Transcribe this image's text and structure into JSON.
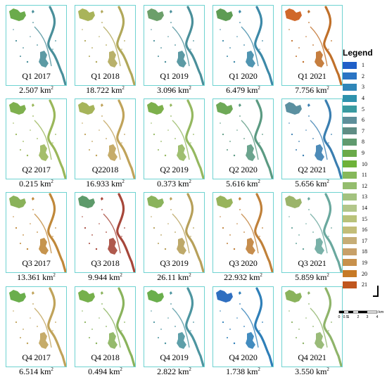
{
  "panels": [
    {
      "label": "Q1 2017",
      "area": "2.507",
      "unit": "km",
      "unit_sup": "2",
      "tint": "#4a8f9a",
      "nw": "#6bab4c"
    },
    {
      "label": "Q1 2018",
      "area": "18.722",
      "unit": "km",
      "unit_sup": "2",
      "tint": "#b1a85a",
      "nw": "#a9b45a"
    },
    {
      "label": "Q1 2019",
      "area": "3.096",
      "unit": "km",
      "unit_sup": "2",
      "tint": "#4a8f9a",
      "nw": "#6c9f6a"
    },
    {
      "label": "Q1 2020",
      "area": "6.479",
      "unit": "km",
      "unit_sup": "2",
      "tint": "#3d89a8",
      "nw": "#5e9c54"
    },
    {
      "label": "Q1 2021",
      "area": "7.756",
      "unit": "km",
      "unit_sup": "2",
      "tint": "#c0702a",
      "nw": "#d0682a"
    },
    {
      "label": "Q2 2017",
      "area": "0.215",
      "unit": "km",
      "unit_sup": "2",
      "tint": "#9ab75a",
      "nw": "#7fb04e"
    },
    {
      "label": "Q22018",
      "area": "16.933",
      "unit": "km",
      "unit_sup": "2",
      "tint": "#c0a35a",
      "nw": "#a6b45a"
    },
    {
      "label": "Q2 2019",
      "area": "0.373",
      "unit": "km",
      "unit_sup": "2",
      "tint": "#95b860",
      "nw": "#7db04c"
    },
    {
      "label": "Q2 2020",
      "area": "5.616",
      "unit": "km",
      "unit_sup": "2",
      "tint": "#5b9a82",
      "nw": "#6ea957"
    },
    {
      "label": "Q2 2021",
      "area": "5.656",
      "unit": "km",
      "unit_sup": "2",
      "tint": "#3a7eb0",
      "nw": "#5b90a0"
    },
    {
      "label": "Q3 2017",
      "area": "13.361",
      "unit": "km",
      "unit_sup": "2",
      "tint": "#c0883a",
      "nw": "#8ab25a"
    },
    {
      "label": "Q3 2018",
      "area": "9.944",
      "unit": "km",
      "unit_sup": "2",
      "tint": "#a6473a",
      "nw": "#5d9a6a"
    },
    {
      "label": "Q3 2019",
      "area": "26.11",
      "unit": "km",
      "unit_sup": "2",
      "tint": "#b7a05a",
      "nw": "#8ab35c"
    },
    {
      "label": "Q3 2020",
      "area": "22.932",
      "unit": "km",
      "unit_sup": "2",
      "tint": "#c0813a",
      "nw": "#98b45c"
    },
    {
      "label": "Q3 2021",
      "area": "5.859",
      "unit": "km",
      "unit_sup": "2",
      "tint": "#6aa89e",
      "nw": "#9bb46a"
    },
    {
      "label": "Q4 2017",
      "area": "6.514",
      "unit": "km",
      "unit_sup": "2",
      "tint": "#c0a35a",
      "nw": "#6aae4c"
    },
    {
      "label": "Q4 2018",
      "area": "0.494",
      "unit": "km",
      "unit_sup": "2",
      "tint": "#8ab35c",
      "nw": "#76b04c"
    },
    {
      "label": "Q4 2019",
      "area": "2.822",
      "unit": "km",
      "unit_sup": "2",
      "tint": "#4d95a0",
      "nw": "#6aae4c"
    },
    {
      "label": "Q4 2020",
      "area": "1.738",
      "unit": "km",
      "unit_sup": "2",
      "tint": "#2f7fb8",
      "nw": "#2f6fc0"
    },
    {
      "label": "Q4 2021",
      "area": "3.550",
      "unit": "km",
      "unit_sup": "2",
      "tint": "#8fb46a",
      "nw": "#8ab35c"
    }
  ],
  "legend": {
    "title": "Legend",
    "items": [
      {
        "label": "1",
        "color": "#1f5fc8"
      },
      {
        "label": "2",
        "color": "#2a74c4"
      },
      {
        "label": "3",
        "color": "#2f86b8"
      },
      {
        "label": "4",
        "color": "#2f92ad"
      },
      {
        "label": "5",
        "color": "#3a9aa0"
      },
      {
        "label": "6",
        "color": "#5e8f9a"
      },
      {
        "label": "7",
        "color": "#5f8d84"
      },
      {
        "label": "8",
        "color": "#5f9a6e"
      },
      {
        "label": "9",
        "color": "#6aaa4a"
      },
      {
        "label": "10",
        "color": "#6eb23a"
      },
      {
        "label": "11",
        "color": "#86b85a"
      },
      {
        "label": "12",
        "color": "#94bd6e"
      },
      {
        "label": "13",
        "color": "#a3c27f"
      },
      {
        "label": "14",
        "color": "#b2c68a"
      },
      {
        "label": "15",
        "color": "#b9c27a"
      },
      {
        "label": "16",
        "color": "#c3bd78"
      },
      {
        "label": "17",
        "color": "#c6ad76"
      },
      {
        "label": "18",
        "color": "#c7a068"
      },
      {
        "label": "19",
        "color": "#c8914c"
      },
      {
        "label": "20",
        "color": "#c77a26"
      },
      {
        "label": "21",
        "color": "#c0561e"
      }
    ]
  },
  "scalebar": {
    "ticks": [
      "0",
      "0.5",
      "1",
      "2",
      "3",
      "4"
    ],
    "unit": "km"
  }
}
